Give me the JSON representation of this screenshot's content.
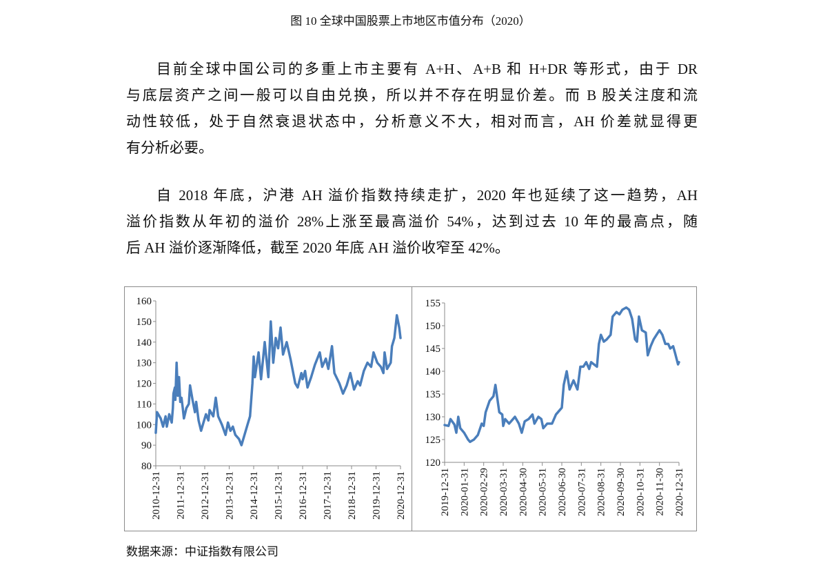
{
  "figure_title": "图 10  全球中国股票上市地区市值分布（2020）",
  "paragraph1": [
    "目前全球中国公司的多重上市主要有 A+H、A+B 和 H+DR 等形式，由于 DR",
    "与底层资产之间一般可以自由兑换，所以并不存在明显价差。而 B 股关注度和流",
    "动性较低，处于自然衰退状态中，分析意义不大，相对而言，AH 价差就显得更",
    "有分析必要。"
  ],
  "paragraph2": [
    "自 2018 年底，沪港 AH 溢价指数持续走扩，2020 年也延续了这一趋势，AH",
    "溢价指数从年初的溢价 28%上涨至最高溢价 54%，达到过去 10 年的最高点，随",
    "后 AH 溢价逐渐降低，截至 2020 年底 AH 溢价收窄至 42%。"
  ],
  "source": "数据来源：中证指数有限公司",
  "colors": {
    "line": "#4a7ebb",
    "axis": "#8a8a8a"
  },
  "chart_data": [
    {
      "type": "line",
      "title": "",
      "series_name": "沪港AH溢价指数",
      "ylim": [
        80,
        160
      ],
      "yticks": [
        "80",
        "90",
        "100",
        "110",
        "120",
        "130",
        "140",
        "150",
        "160"
      ],
      "xticks": [
        "2010-12-31",
        "2011-12-31",
        "2012-12-31",
        "2013-12-31",
        "2014-12-31",
        "2015-12-31",
        "2016-12-31",
        "2017-12-31",
        "2018-12-31",
        "2019-12-31",
        "2020-12-31"
      ],
      "x_unit": "years since 2010-12-31",
      "x": [
        0,
        0.05,
        0.2,
        0.3,
        0.4,
        0.45,
        0.55,
        0.65,
        0.7,
        0.72,
        0.78,
        0.8,
        0.85,
        0.9,
        0.95,
        1.0,
        1.05,
        1.1,
        1.15,
        1.25,
        1.35,
        1.4,
        1.5,
        1.6,
        1.65,
        1.75,
        1.85,
        1.95,
        2.05,
        2.15,
        2.2,
        2.35,
        2.45,
        2.55,
        2.7,
        2.85,
        2.95,
        3.05,
        3.15,
        3.25,
        3.4,
        3.5,
        3.6,
        3.75,
        3.85,
        3.95,
        4.0,
        4.05,
        4.2,
        4.3,
        4.45,
        4.6,
        4.7,
        4.8,
        4.9,
        5.0,
        5.1,
        5.2,
        5.35,
        5.5,
        5.7,
        5.8,
        5.95,
        6.0,
        6.1,
        6.2,
        6.35,
        6.5,
        6.7,
        6.8,
        6.95,
        7.05,
        7.2,
        7.3,
        7.5,
        7.65,
        7.8,
        7.95,
        8.1,
        8.25,
        8.35,
        8.5,
        8.65,
        8.8,
        8.9,
        9.05,
        9.2,
        9.3,
        9.35,
        9.45,
        9.6,
        9.65,
        9.75,
        9.85,
        9.95,
        10.0
      ],
      "y": [
        96,
        106,
        103,
        99,
        104,
        99,
        105,
        101,
        108,
        115,
        118,
        112,
        130,
        114,
        123,
        111,
        113,
        108,
        103,
        108,
        110,
        119,
        112,
        106,
        111,
        102,
        97,
        101,
        105,
        102,
        107,
        104,
        113,
        104,
        100,
        95,
        101,
        97,
        99,
        95,
        93,
        90,
        94,
        100,
        104,
        120,
        133,
        123,
        135,
        122,
        140,
        123,
        150,
        130,
        142,
        137,
        147,
        134,
        140,
        132,
        120,
        118,
        125,
        122,
        126,
        118,
        123,
        129,
        135,
        128,
        132,
        127,
        138,
        125,
        120,
        115,
        119,
        125,
        117,
        121,
        119,
        126,
        130,
        128,
        135,
        130,
        128,
        125,
        135,
        127,
        130,
        138,
        142,
        153,
        147,
        142
      ]
    },
    {
      "type": "line",
      "title": "",
      "series_name": "沪港AH溢价指数（2020）",
      "ylim": [
        120,
        155
      ],
      "yticks": [
        "120",
        "125",
        "130",
        "135",
        "140",
        "145",
        "150",
        "155"
      ],
      "xticks": [
        "2019-12-31",
        "2020-01-31",
        "2020-02-29",
        "2020-03-31",
        "2020-04-30",
        "2020-05-31",
        "2020-06-30",
        "2020-07-31",
        "2020-08-31",
        "2020-09-30",
        "2020-10-31",
        "2020-11-30",
        "2020-12-31"
      ],
      "x_unit": "months since 2019-12-31",
      "x": [
        0,
        0.2,
        0.3,
        0.5,
        0.6,
        0.7,
        0.8,
        1.0,
        1.2,
        1.3,
        1.5,
        1.7,
        1.9,
        2.0,
        2.1,
        2.3,
        2.5,
        2.6,
        2.7,
        2.8,
        2.95,
        3.0,
        3.1,
        3.3,
        3.5,
        3.6,
        3.8,
        3.95,
        4.1,
        4.3,
        4.5,
        4.6,
        4.8,
        4.95,
        5.05,
        5.25,
        5.5,
        5.7,
        6.0,
        6.1,
        6.25,
        6.4,
        6.6,
        6.8,
        6.95,
        7.1,
        7.25,
        7.4,
        7.5,
        7.65,
        7.8,
        7.9,
        8.0,
        8.15,
        8.3,
        8.5,
        8.6,
        8.8,
        8.95,
        9.1,
        9.3,
        9.45,
        9.6,
        9.75,
        9.85,
        9.95,
        10.1,
        10.3,
        10.4,
        10.55,
        10.7,
        10.85,
        11.0,
        11.15,
        11.3,
        11.45,
        11.55,
        11.7,
        11.8,
        11.95,
        12.0
      ],
      "y": [
        128.2,
        128,
        129.5,
        128.3,
        126.5,
        130,
        127.5,
        126.5,
        125,
        124.5,
        125,
        126,
        128.5,
        128,
        131,
        133.5,
        134.5,
        137,
        134,
        131,
        130.5,
        128,
        129.5,
        128.5,
        129.5,
        130,
        128.5,
        126.5,
        129,
        129.5,
        130.5,
        128.5,
        130,
        129.5,
        127.5,
        128.5,
        128.5,
        130.5,
        132,
        137,
        140,
        136,
        138,
        136,
        141,
        141,
        142,
        140.5,
        142,
        141.5,
        141,
        146,
        148,
        146.5,
        147,
        148,
        152,
        153,
        152.5,
        153.5,
        154,
        153.5,
        151.5,
        147,
        146.5,
        152,
        149,
        148.5,
        143.5,
        145.5,
        147,
        148,
        149,
        148,
        146,
        146,
        145,
        145.5,
        144,
        141.5,
        142
      ]
    }
  ]
}
